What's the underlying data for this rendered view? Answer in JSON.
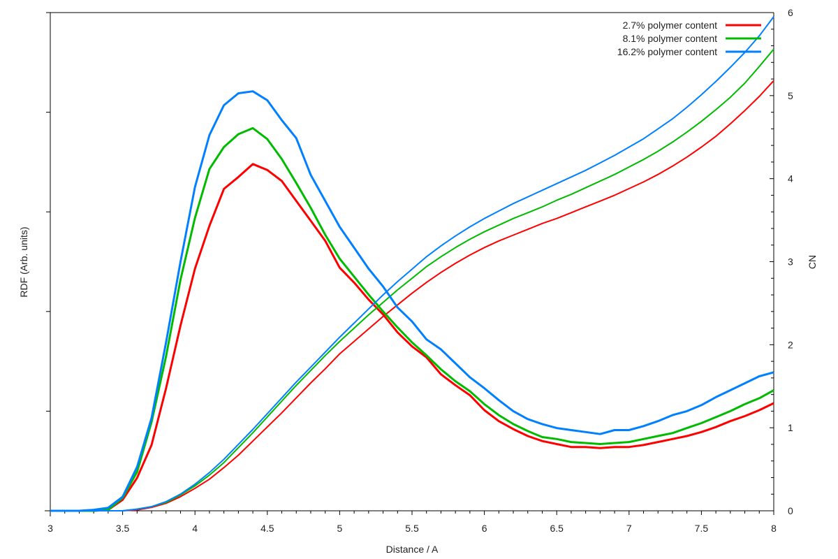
{
  "chart_data": {
    "type": "line",
    "title": "",
    "xlabel": "Distance / A",
    "ylabel_left": "RDF (Arb. units)",
    "ylabel_right": "CN",
    "xlim": [
      3,
      8
    ],
    "ylim_left": [
      0,
      5
    ],
    "ylim_right": [
      0,
      6
    ],
    "x_ticks": [
      "3",
      "3.5",
      "4",
      "4.5",
      "5",
      "5.5",
      "6",
      "6.5",
      "7",
      "7.5",
      "8"
    ],
    "y_right_ticks": [
      "0",
      "1",
      "2",
      "3",
      "4",
      "5",
      "6"
    ],
    "grid": false,
    "legend_position": "top-right",
    "x": [
      3.0,
      3.1,
      3.2,
      3.3,
      3.4,
      3.5,
      3.6,
      3.7,
      3.8,
      3.9,
      4.0,
      4.1,
      4.2,
      4.3,
      4.4,
      4.5,
      4.6,
      4.7,
      4.8,
      4.9,
      5.0,
      5.1,
      5.2,
      5.3,
      5.4,
      5.5,
      5.6,
      5.7,
      5.8,
      5.9,
      6.0,
      6.1,
      6.2,
      6.3,
      6.4,
      6.5,
      6.6,
      6.7,
      6.8,
      6.9,
      7.0,
      7.1,
      7.2,
      7.3,
      7.4,
      7.5,
      7.6,
      7.7,
      7.8,
      7.9,
      8.0
    ],
    "series": [
      {
        "name": "2.7% polymer content",
        "color": "#ff0000",
        "rdf": [
          0,
          0,
          0,
          0,
          0.01,
          0.11,
          0.33,
          0.66,
          1.23,
          1.86,
          2.43,
          2.86,
          3.23,
          3.35,
          3.48,
          3.42,
          3.31,
          3.11,
          2.91,
          2.71,
          2.44,
          2.29,
          2.12,
          1.97,
          1.79,
          1.65,
          1.54,
          1.37,
          1.26,
          1.16,
          1.01,
          0.9,
          0.82,
          0.75,
          0.7,
          0.67,
          0.64,
          0.64,
          0.63,
          0.64,
          0.64,
          0.66,
          0.69,
          0.72,
          0.75,
          0.79,
          0.84,
          0.9,
          0.95,
          1.01,
          1.08
        ],
        "cn": [
          0,
          0,
          0,
          0,
          0,
          0,
          0.01,
          0.04,
          0.09,
          0.17,
          0.27,
          0.38,
          0.52,
          0.67,
          0.84,
          1.01,
          1.18,
          1.36,
          1.54,
          1.71,
          1.89,
          2.04,
          2.19,
          2.34,
          2.48,
          2.62,
          2.75,
          2.87,
          2.98,
          3.08,
          3.17,
          3.25,
          3.32,
          3.39,
          3.46,
          3.52,
          3.59,
          3.66,
          3.73,
          3.8,
          3.88,
          3.96,
          4.05,
          4.15,
          4.26,
          4.38,
          4.51,
          4.66,
          4.82,
          4.99,
          5.18
        ]
      },
      {
        "name": "8.1% polymer content",
        "color": "#00bb00",
        "rdf": [
          0,
          0,
          0,
          0,
          0.01,
          0.13,
          0.39,
          0.89,
          1.55,
          2.32,
          2.94,
          3.43,
          3.65,
          3.78,
          3.84,
          3.73,
          3.53,
          3.29,
          3.04,
          2.77,
          2.53,
          2.35,
          2.17,
          2.0,
          1.84,
          1.69,
          1.56,
          1.42,
          1.3,
          1.2,
          1.07,
          0.96,
          0.87,
          0.8,
          0.74,
          0.72,
          0.69,
          0.68,
          0.67,
          0.68,
          0.69,
          0.72,
          0.75,
          0.78,
          0.83,
          0.88,
          0.94,
          1.0,
          1.07,
          1.13,
          1.21
        ],
        "cn": [
          0,
          0,
          0,
          0,
          0,
          0,
          0.02,
          0.05,
          0.1,
          0.19,
          0.3,
          0.43,
          0.58,
          0.76,
          0.94,
          1.13,
          1.32,
          1.51,
          1.69,
          1.87,
          2.04,
          2.2,
          2.36,
          2.51,
          2.66,
          2.8,
          2.94,
          3.06,
          3.17,
          3.27,
          3.36,
          3.44,
          3.52,
          3.59,
          3.66,
          3.74,
          3.81,
          3.89,
          3.97,
          4.05,
          4.14,
          4.23,
          4.33,
          4.44,
          4.56,
          4.69,
          4.83,
          4.98,
          5.15,
          5.35,
          5.56
        ]
      },
      {
        "name": "16.2% polymer content",
        "color": "#0080ff",
        "rdf": [
          0,
          0,
          0,
          0.01,
          0.03,
          0.14,
          0.44,
          0.93,
          1.69,
          2.5,
          3.25,
          3.77,
          4.07,
          4.19,
          4.21,
          4.12,
          3.92,
          3.74,
          3.37,
          3.11,
          2.85,
          2.64,
          2.43,
          2.25,
          2.04,
          1.9,
          1.72,
          1.62,
          1.48,
          1.34,
          1.23,
          1.11,
          1.0,
          0.92,
          0.87,
          0.83,
          0.81,
          0.79,
          0.77,
          0.81,
          0.81,
          0.85,
          0.9,
          0.96,
          1.0,
          1.06,
          1.14,
          1.21,
          1.28,
          1.35,
          1.39
        ],
        "cn": [
          0,
          0,
          0,
          0,
          0,
          0,
          0.02,
          0.05,
          0.11,
          0.2,
          0.32,
          0.46,
          0.62,
          0.8,
          0.98,
          1.17,
          1.36,
          1.55,
          1.73,
          1.91,
          2.09,
          2.26,
          2.43,
          2.6,
          2.76,
          2.91,
          3.06,
          3.19,
          3.31,
          3.42,
          3.52,
          3.61,
          3.7,
          3.78,
          3.86,
          3.94,
          4.02,
          4.1,
          4.19,
          4.28,
          4.38,
          4.48,
          4.6,
          4.72,
          4.86,
          5.01,
          5.17,
          5.34,
          5.52,
          5.72,
          5.95
        ]
      }
    ]
  }
}
